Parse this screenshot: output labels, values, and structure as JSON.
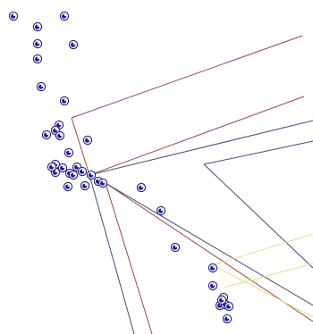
{
  "colors": {
    "background": "#ffffff",
    "red_frame": "#9a4848",
    "blue_frame": "#3e4e7a",
    "yellow_frame": "#e8e08a",
    "point_ring": "#202078",
    "point_fill": "#1a1a9a"
  },
  "points": {
    "count": 40,
    "style": "blue-ringed-circles"
  }
}
